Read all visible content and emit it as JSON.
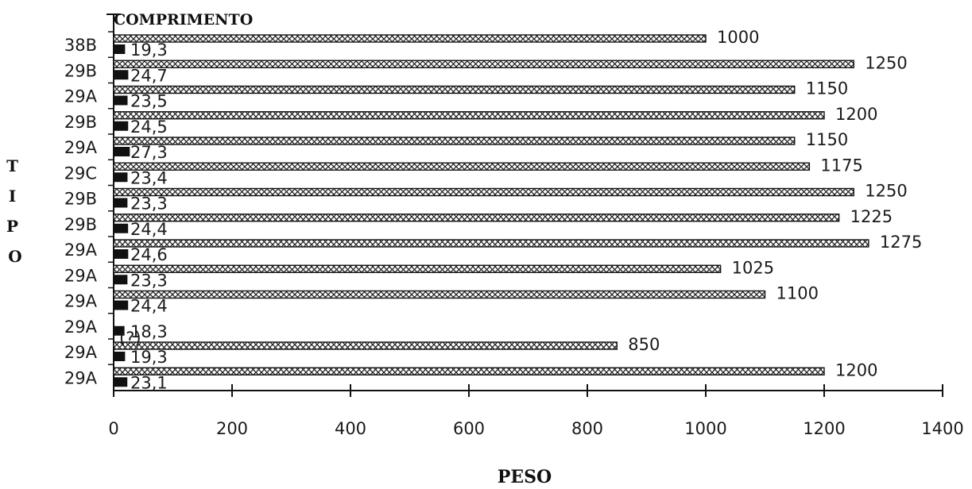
{
  "chart_data": {
    "type": "bar",
    "orientation": "horizontal",
    "series_title": "COMPRIMENTO",
    "xlabel": "PESO",
    "ylabel": "TIPO",
    "xlim": [
      0,
      1400
    ],
    "x_ticks": [
      "0",
      "200",
      "400",
      "600",
      "800",
      "1000",
      "1200",
      "1400"
    ],
    "categories": [
      "38B",
      "29B",
      "29A",
      "29B",
      "29A",
      "29C",
      "29B",
      "29B",
      "29A",
      "29A",
      "29A",
      "29A",
      "29A",
      "29A"
    ],
    "series": [
      {
        "values": [
          1000,
          1250,
          1150,
          1200,
          1150,
          1175,
          1250,
          1225,
          1275,
          1025,
          1100,
          null,
          850,
          1200
        ],
        "labels": [
          "1000",
          "1250",
          "1150",
          "1200",
          "1150",
          "1175",
          "1250",
          "1225",
          "1275",
          "1025",
          "1100",
          "",
          "850",
          "1200"
        ],
        "pattern": "crosshatch"
      },
      {
        "values": [
          19.3,
          24.7,
          23.5,
          24.5,
          27.3,
          23.4,
          23.3,
          24.4,
          24.6,
          23.3,
          24.4,
          18.3,
          19.3,
          23.1
        ],
        "labels": [
          "19,3",
          "24,7",
          "23,5",
          "24,5",
          "27,3",
          "23,4",
          "23,3",
          "24,4",
          "24,6",
          "23,3",
          "24,4",
          "18,3",
          "19,3",
          "23,1"
        ],
        "color": "#111111"
      }
    ],
    "annotations": [
      "(?)"
    ],
    "grid": false,
    "legend": "none"
  }
}
